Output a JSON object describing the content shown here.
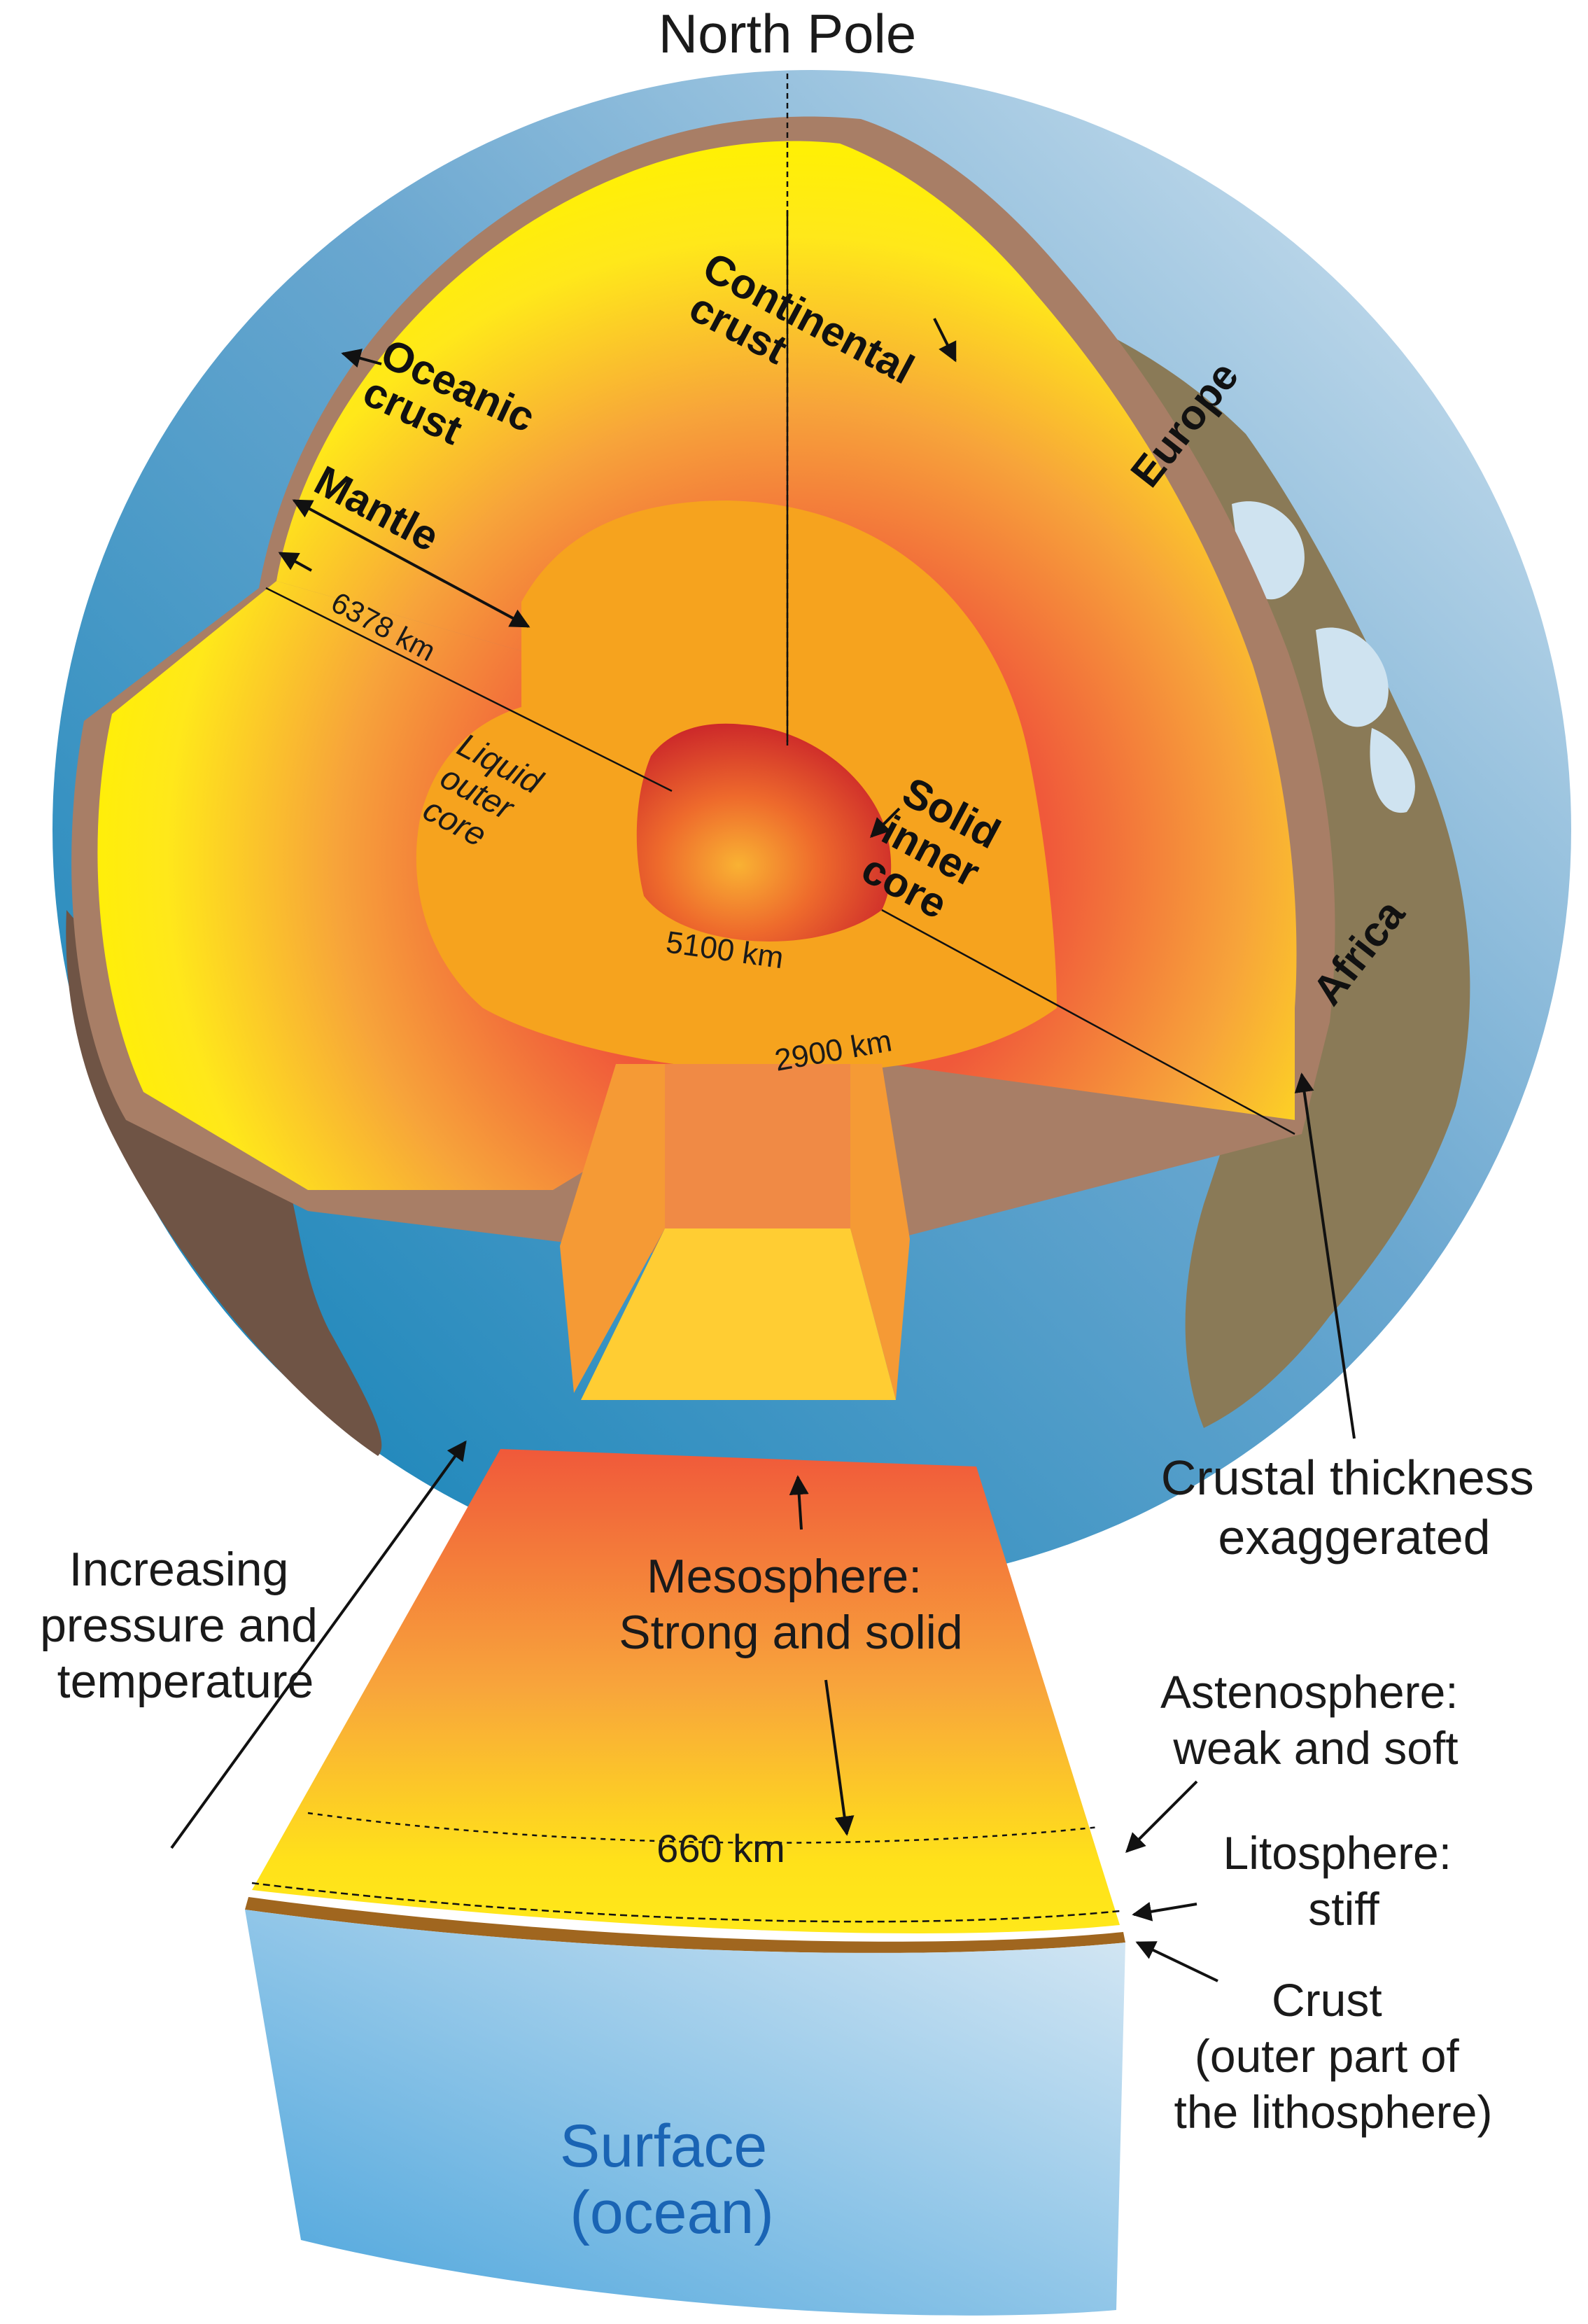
{
  "labels": {
    "north_pole": "North Pole",
    "oceanic_crust": [
      "Oceanic",
      "crust"
    ],
    "continental_crust": [
      "Continental",
      "crust"
    ],
    "mantle": "Mantle",
    "radius": "6378 km",
    "outer_core": [
      "Liquid",
      "outer",
      "core"
    ],
    "inner_core": [
      "Solid",
      "inner",
      "core"
    ],
    "inner_depth": "5100 km",
    "outer_depth": "2900 km",
    "europe": "Europe",
    "africa": "Africa",
    "crustal_thickness": [
      "Crustal thickness",
      "exaggerated"
    ],
    "pressure": [
      "Increasing",
      "pressure and",
      "temperature"
    ],
    "mesosphere": [
      "Mesosphere:",
      "Strong and solid"
    ],
    "depth_660": "660 km",
    "asthenosphere": [
      "Astenosphere:",
      "weak and soft"
    ],
    "lithosphere": [
      "Litosphere:",
      "stiff"
    ],
    "crust": [
      "Crust",
      "(outer part of",
      "the lithosphere)"
    ],
    "surface": [
      "Surface",
      "(ocean)"
    ]
  },
  "colors": {
    "ocean_dark": "#0a7fb5",
    "ocean_light": "#cfe3f0",
    "land": "#7b6a4e",
    "crust_brown": "#a87e66",
    "mantle_yellow": "#ffe81a",
    "mantle_red": "#f0593a",
    "outer_core": "#f6a31e",
    "inner_core": "#d8252a",
    "surface_text": "#1a64b4"
  }
}
